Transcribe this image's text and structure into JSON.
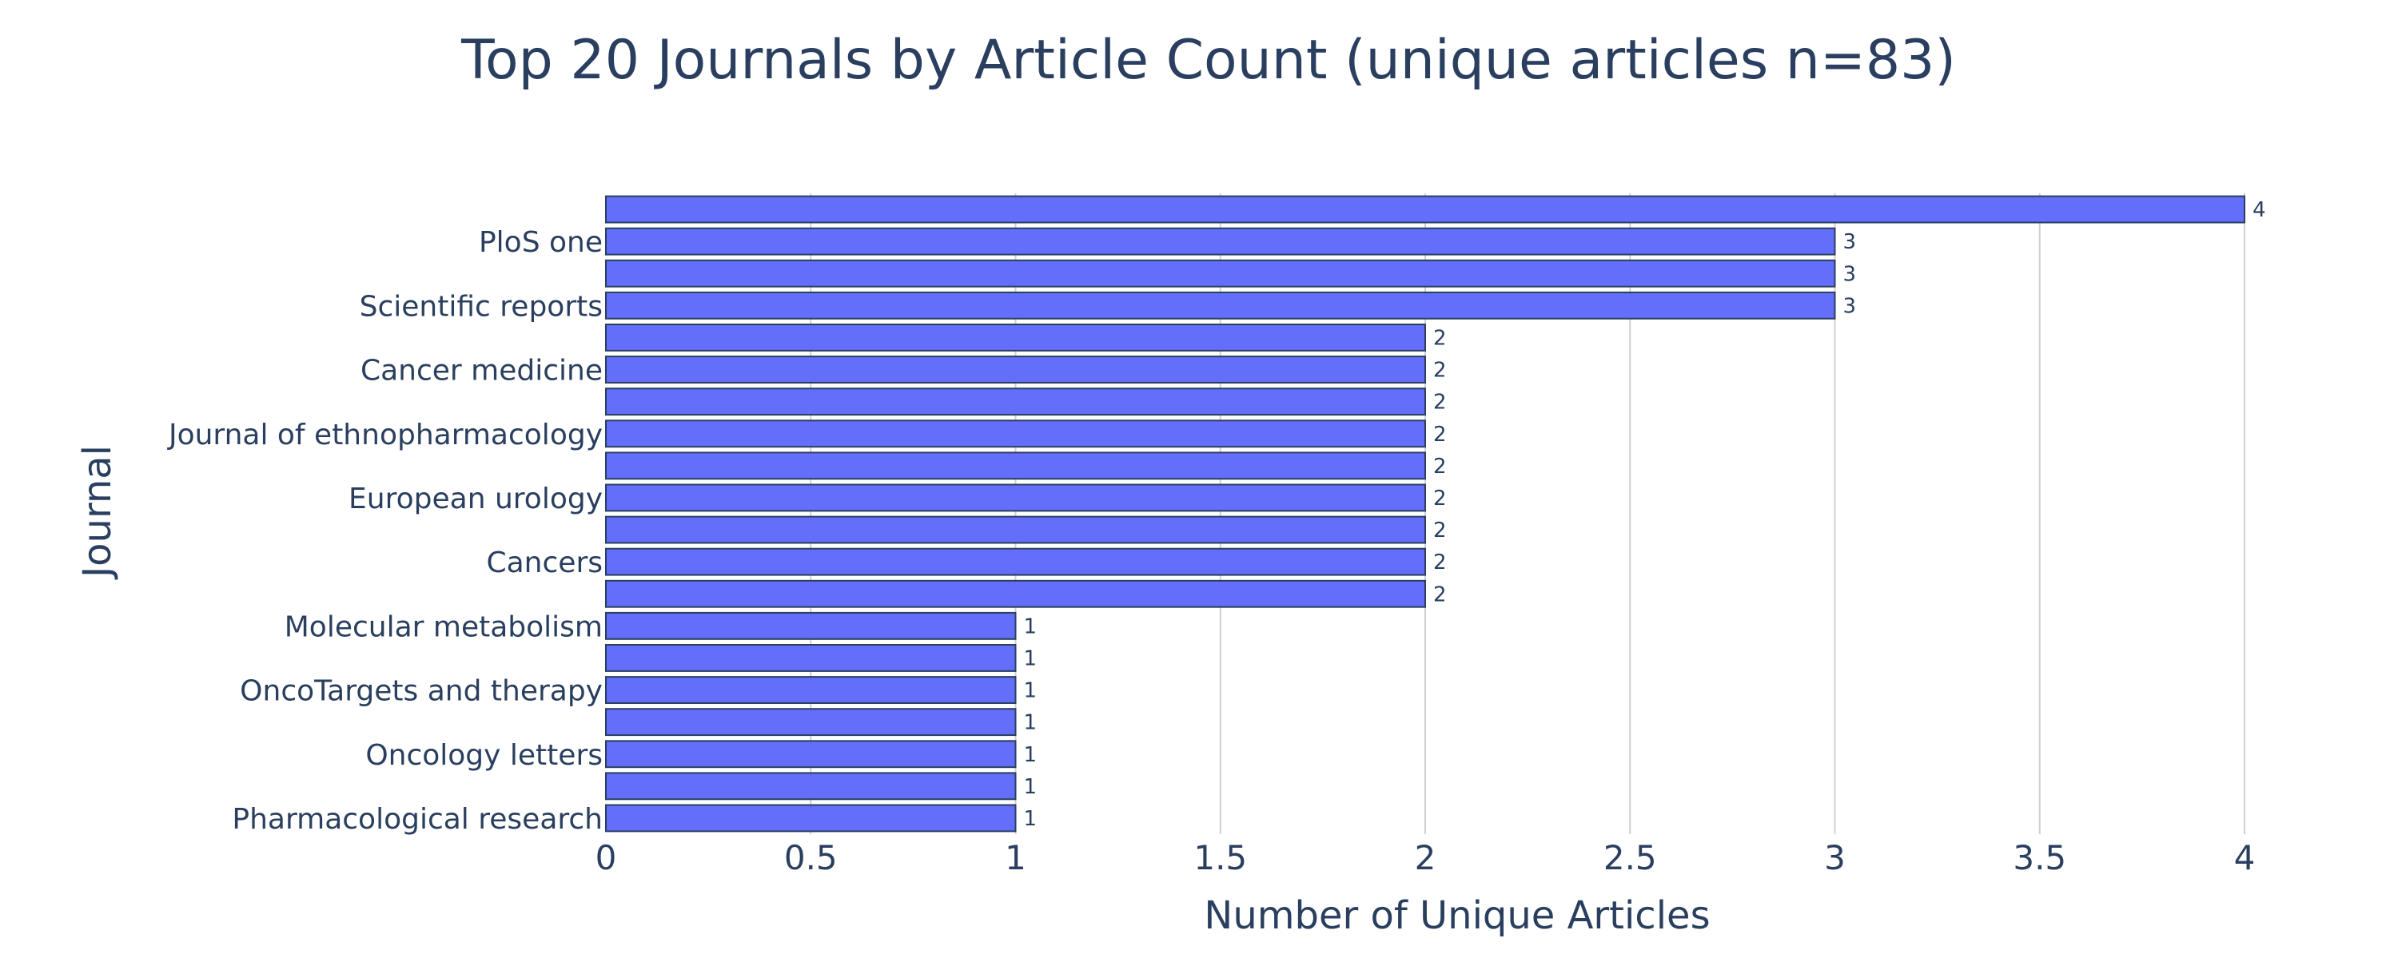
{
  "chart_data": {
    "type": "bar",
    "orientation": "horizontal",
    "title": "Top 20 Journals by Article Count  (unique articles n=83)",
    "xlabel": "Number of Unique Articles",
    "ylabel": "Journal",
    "xlim": [
      0,
      4
    ],
    "x_ticks": [
      "0",
      "0.5",
      "1",
      "1.5",
      "2",
      "2.5",
      "3",
      "3.5",
      "4"
    ],
    "x_tick_values": [
      0,
      0.5,
      1,
      1.5,
      2,
      2.5,
      3,
      3.5,
      4
    ],
    "grid": true,
    "legend": "none",
    "categories": [
      "",
      "PloS one",
      "",
      "Scientific reports",
      "",
      "Cancer medicine",
      "",
      "Journal of ethnopharmacology",
      "",
      "European urology",
      "",
      "Cancers",
      "",
      "Molecular metabolism",
      "",
      "OncoTargets and therapy",
      "",
      "Oncology letters",
      "",
      "Pharmacological research"
    ],
    "values": [
      4,
      3,
      3,
      3,
      2,
      2,
      2,
      2,
      2,
      2,
      2,
      2,
      2,
      1,
      1,
      1,
      1,
      1,
      1,
      1
    ],
    "data_labels": [
      "4",
      "3",
      "3",
      "3",
      "2",
      "2",
      "2",
      "2",
      "2",
      "2",
      "2",
      "2",
      "2",
      "1",
      "1",
      "1",
      "1",
      "1",
      "1",
      "1"
    ],
    "colors": {
      "bar": "#636efa",
      "bar_outline": "#2a3f5f",
      "text": "#2a3f5f",
      "grid": "#d0d0d0",
      "background": "#ffffff"
    }
  }
}
